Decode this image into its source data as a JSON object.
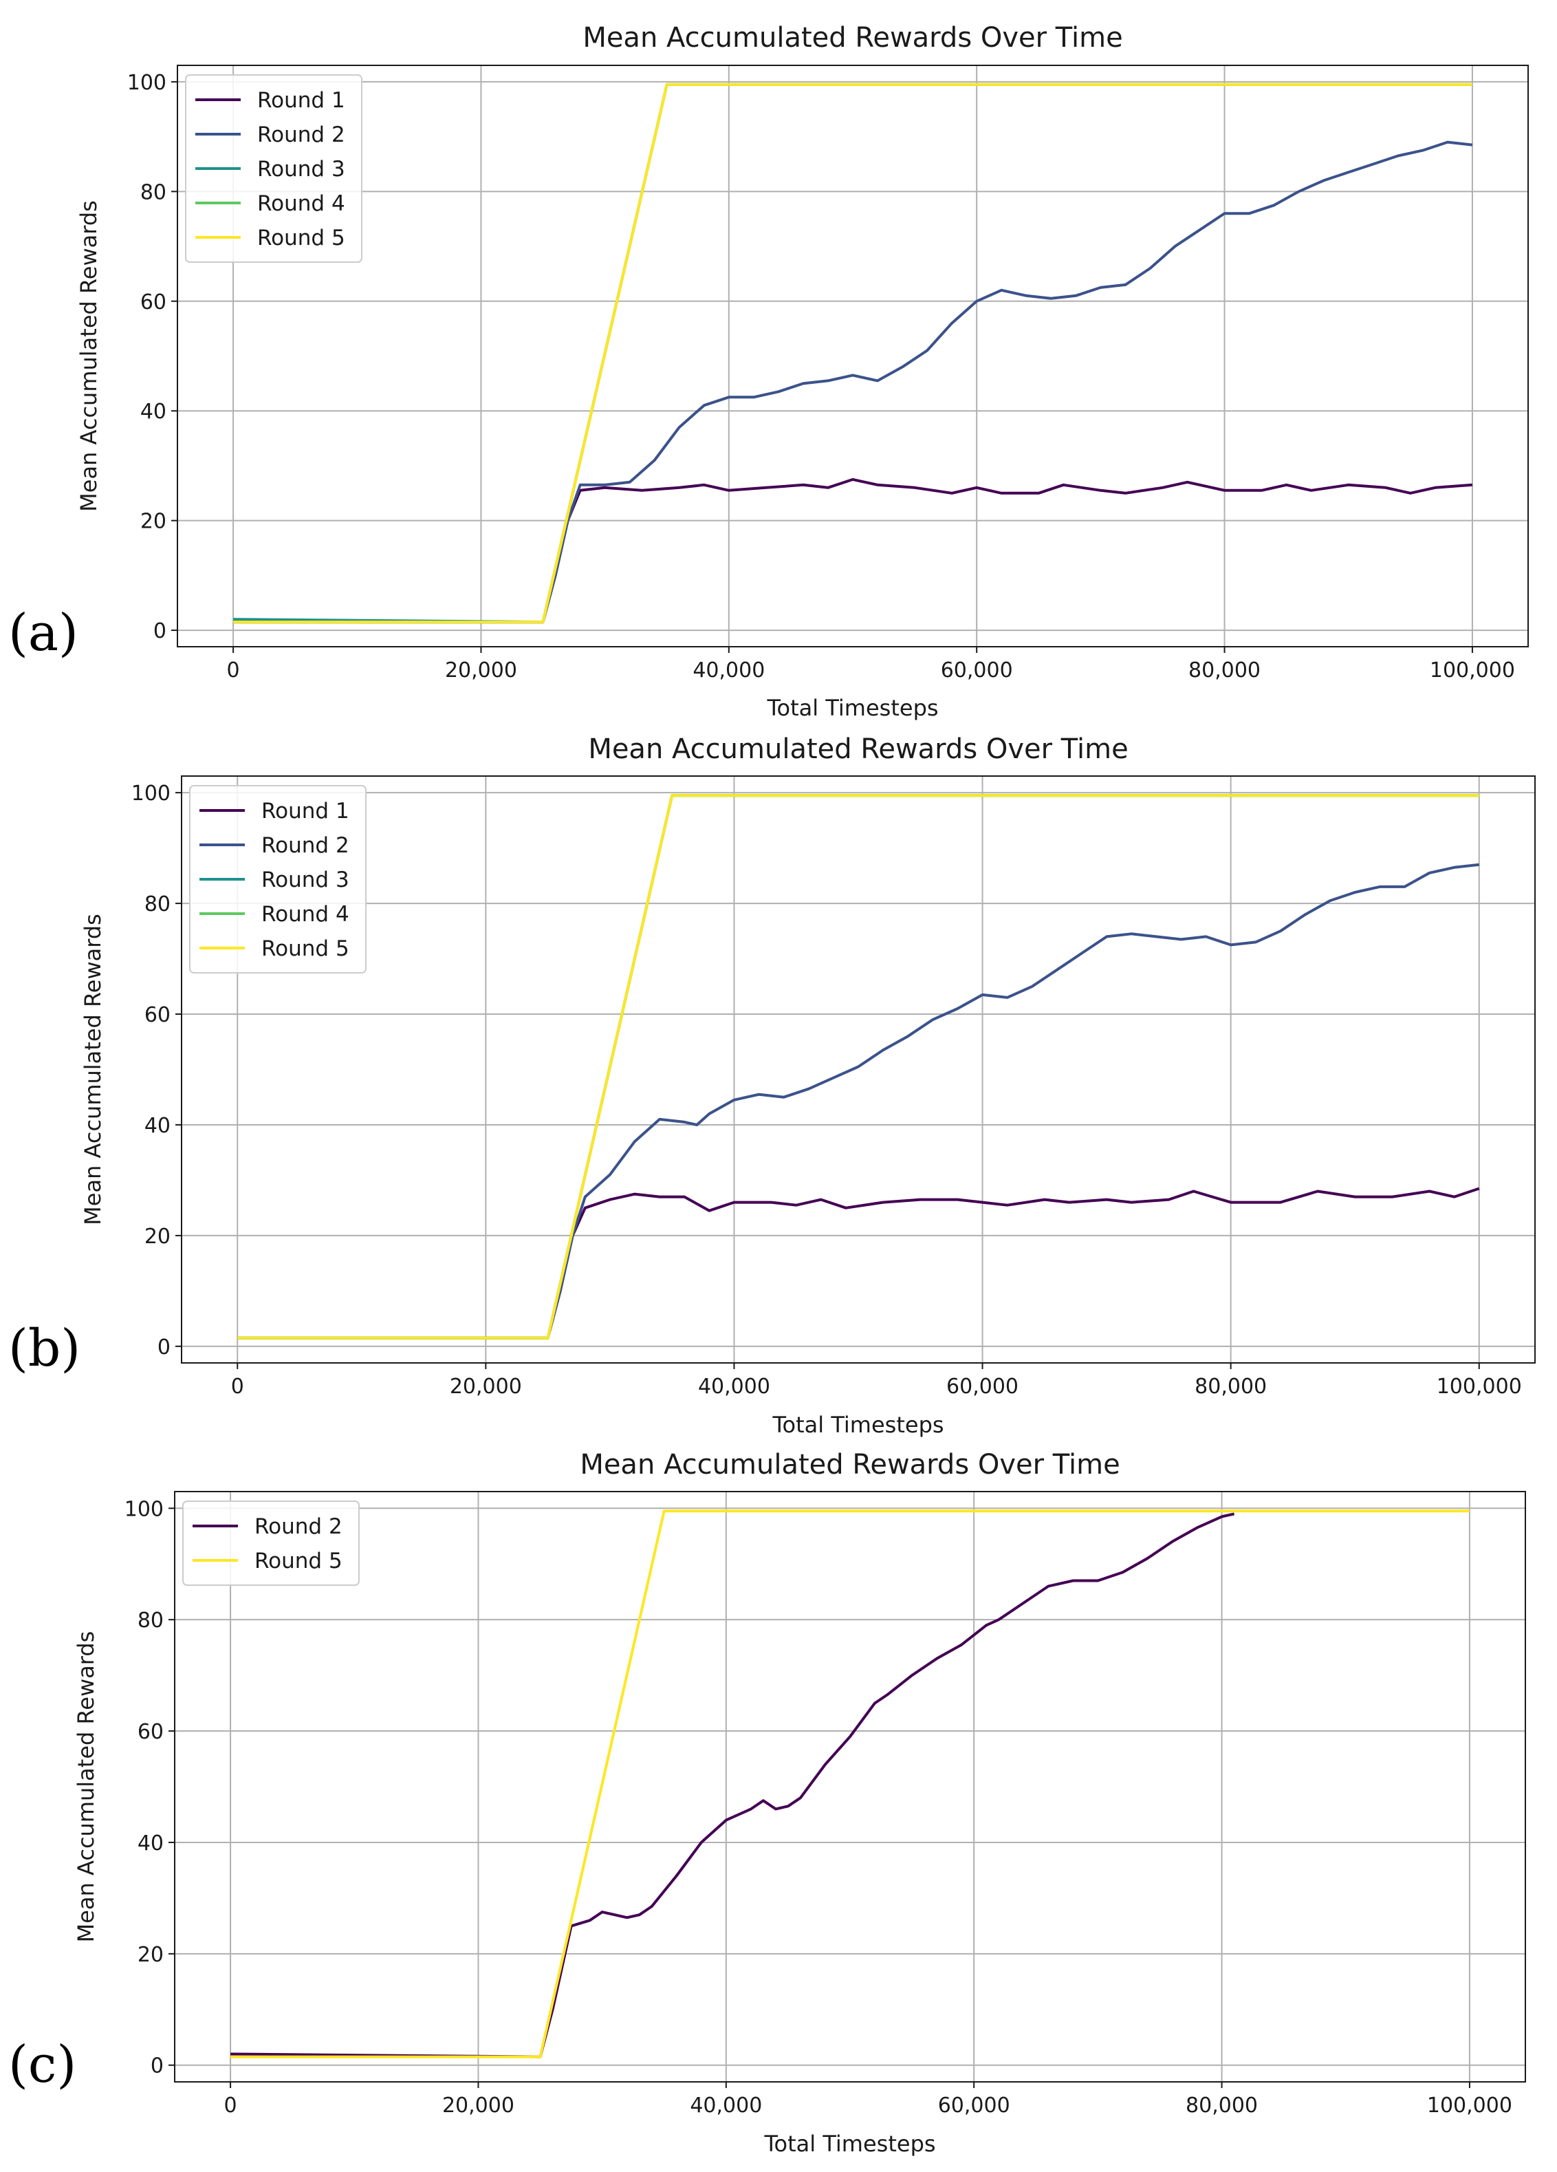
{
  "chart_data": [
    {
      "type": "line",
      "panel_label": "(a)",
      "title": "Mean Accumulated Rewards Over Time",
      "xlabel": "Total Timesteps",
      "ylabel": "Mean Accumulated Rewards",
      "xlim": [
        -4500,
        104500
      ],
      "ylim": [
        -3,
        103
      ],
      "xticks": [
        0,
        20000,
        40000,
        60000,
        80000,
        100000
      ],
      "xtick_labels": [
        "0",
        "20,000",
        "40,000",
        "60,000",
        "80,000",
        "100,000"
      ],
      "yticks": [
        0,
        20,
        40,
        60,
        80,
        100
      ],
      "ytick_labels": [
        "0",
        "20",
        "40",
        "60",
        "80",
        "100"
      ],
      "grid": true,
      "legend_position": "upper-left",
      "series": [
        {
          "name": "Round 1",
          "color": "#440154",
          "points": [
            [
              0,
              1.5
            ],
            [
              25000,
              1.5
            ],
            [
              26000,
              10
            ],
            [
              27000,
              20
            ],
            [
              28000,
              25.5
            ],
            [
              30000,
              26
            ],
            [
              33000,
              25.5
            ],
            [
              36000,
              26
            ],
            [
              38000,
              26.5
            ],
            [
              40000,
              25.5
            ],
            [
              43000,
              26
            ],
            [
              46000,
              26.5
            ],
            [
              48000,
              26
            ],
            [
              50000,
              27.5
            ],
            [
              52000,
              26.5
            ],
            [
              55000,
              26
            ],
            [
              58000,
              25
            ],
            [
              60000,
              26
            ],
            [
              62000,
              25
            ],
            [
              65000,
              25
            ],
            [
              67000,
              26.5
            ],
            [
              70000,
              25.5
            ],
            [
              72000,
              25
            ],
            [
              75000,
              26
            ],
            [
              77000,
              27
            ],
            [
              80000,
              25.5
            ],
            [
              83000,
              25.5
            ],
            [
              85000,
              26.5
            ],
            [
              87000,
              25.5
            ],
            [
              90000,
              26.5
            ],
            [
              93000,
              26
            ],
            [
              95000,
              25
            ],
            [
              97000,
              26
            ],
            [
              100000,
              26.5
            ]
          ]
        },
        {
          "name": "Round 2",
          "color": "#3b528b",
          "points": [
            [
              0,
              1.5
            ],
            [
              25000,
              1.5
            ],
            [
              26000,
              10
            ],
            [
              27000,
              20
            ],
            [
              28000,
              26.5
            ],
            [
              30000,
              26.5
            ],
            [
              32000,
              27
            ],
            [
              34000,
              31
            ],
            [
              36000,
              37
            ],
            [
              38000,
              41
            ],
            [
              40000,
              42.5
            ],
            [
              42000,
              42.5
            ],
            [
              44000,
              43.5
            ],
            [
              46000,
              45
            ],
            [
              48000,
              45.5
            ],
            [
              50000,
              46.5
            ],
            [
              52000,
              45.5
            ],
            [
              54000,
              48
            ],
            [
              56000,
              51
            ],
            [
              58000,
              56
            ],
            [
              60000,
              60
            ],
            [
              62000,
              62
            ],
            [
              64000,
              61
            ],
            [
              66000,
              60.5
            ],
            [
              68000,
              61
            ],
            [
              70000,
              62.5
            ],
            [
              72000,
              63
            ],
            [
              74000,
              66
            ],
            [
              76000,
              70
            ],
            [
              78000,
              73
            ],
            [
              80000,
              76
            ],
            [
              82000,
              76
            ],
            [
              84000,
              77.5
            ],
            [
              86000,
              80
            ],
            [
              88000,
              82
            ],
            [
              90000,
              83.5
            ],
            [
              92000,
              85
            ],
            [
              94000,
              86.5
            ],
            [
              96000,
              87.5
            ],
            [
              98000,
              89
            ],
            [
              100000,
              88.5
            ]
          ]
        },
        {
          "name": "Round 3",
          "color": "#21918c",
          "points": [
            [
              0,
              2
            ],
            [
              25000,
              1.5
            ],
            [
              35000,
              99.5
            ],
            [
              100000,
              99.5
            ]
          ]
        },
        {
          "name": "Round 4",
          "color": "#5ec962",
          "points": [
            [
              0,
              1.5
            ],
            [
              25000,
              1.5
            ],
            [
              35000,
              99.5
            ],
            [
              100000,
              99.5
            ]
          ]
        },
        {
          "name": "Round 5",
          "color": "#fde725",
          "points": [
            [
              0,
              1.5
            ],
            [
              25000,
              1.5
            ],
            [
              35000,
              99.5
            ],
            [
              100000,
              99.5
            ]
          ]
        }
      ]
    },
    {
      "type": "line",
      "panel_label": "(b)",
      "title": "Mean Accumulated Rewards Over Time",
      "xlabel": "Total Timesteps",
      "ylabel": "Mean Accumulated Rewards",
      "xlim": [
        -4500,
        104500
      ],
      "ylim": [
        -3,
        103
      ],
      "xticks": [
        0,
        20000,
        40000,
        60000,
        80000,
        100000
      ],
      "xtick_labels": [
        "0",
        "20,000",
        "40,000",
        "60,000",
        "80,000",
        "100,000"
      ],
      "yticks": [
        0,
        20,
        40,
        60,
        80,
        100
      ],
      "ytick_labels": [
        "0",
        "20",
        "40",
        "60",
        "80",
        "100"
      ],
      "grid": true,
      "legend_position": "upper-left",
      "series": [
        {
          "name": "Round 1",
          "color": "#440154",
          "points": [
            [
              0,
              1.5
            ],
            [
              25000,
              1.5
            ],
            [
              26000,
              10
            ],
            [
              27000,
              20
            ],
            [
              28000,
              25
            ],
            [
              30000,
              26.5
            ],
            [
              32000,
              27.5
            ],
            [
              34000,
              27
            ],
            [
              36000,
              27
            ],
            [
              38000,
              24.5
            ],
            [
              40000,
              26
            ],
            [
              43000,
              26
            ],
            [
              45000,
              25.5
            ],
            [
              47000,
              26.5
            ],
            [
              49000,
              25
            ],
            [
              52000,
              26
            ],
            [
              55000,
              26.5
            ],
            [
              58000,
              26.5
            ],
            [
              60000,
              26
            ],
            [
              62000,
              25.5
            ],
            [
              65000,
              26.5
            ],
            [
              67000,
              26
            ],
            [
              70000,
              26.5
            ],
            [
              72000,
              26
            ],
            [
              75000,
              26.5
            ],
            [
              77000,
              28
            ],
            [
              80000,
              26
            ],
            [
              82000,
              26
            ],
            [
              84000,
              26
            ],
            [
              87000,
              28
            ],
            [
              90000,
              27
            ],
            [
              93000,
              27
            ],
            [
              96000,
              28
            ],
            [
              98000,
              27
            ],
            [
              100000,
              28.5
            ]
          ]
        },
        {
          "name": "Round 2",
          "color": "#3b528b",
          "points": [
            [
              0,
              1.5
            ],
            [
              25000,
              1.5
            ],
            [
              26000,
              10
            ],
            [
              27000,
              20
            ],
            [
              28000,
              27
            ],
            [
              30000,
              31
            ],
            [
              32000,
              37
            ],
            [
              34000,
              41
            ],
            [
              36000,
              40.5
            ],
            [
              37000,
              40
            ],
            [
              38000,
              42
            ],
            [
              40000,
              44.5
            ],
            [
              42000,
              45.5
            ],
            [
              44000,
              45
            ],
            [
              46000,
              46.5
            ],
            [
              48000,
              48.5
            ],
            [
              50000,
              50.5
            ],
            [
              52000,
              53.5
            ],
            [
              54000,
              56
            ],
            [
              56000,
              59
            ],
            [
              58000,
              61
            ],
            [
              60000,
              63.5
            ],
            [
              62000,
              63
            ],
            [
              64000,
              65
            ],
            [
              66000,
              68
            ],
            [
              68000,
              71
            ],
            [
              70000,
              74
            ],
            [
              72000,
              74.5
            ],
            [
              74000,
              74
            ],
            [
              76000,
              73.5
            ],
            [
              78000,
              74
            ],
            [
              80000,
              72.5
            ],
            [
              82000,
              73
            ],
            [
              84000,
              75
            ],
            [
              86000,
              78
            ],
            [
              88000,
              80.5
            ],
            [
              90000,
              82
            ],
            [
              92000,
              83
            ],
            [
              94000,
              83
            ],
            [
              96000,
              85.5
            ],
            [
              98000,
              86.5
            ],
            [
              100000,
              87
            ]
          ]
        },
        {
          "name": "Round 3",
          "color": "#21918c",
          "points": [
            [
              0,
              1.5
            ],
            [
              25000,
              1.5
            ],
            [
              35000,
              99.5
            ],
            [
              100000,
              99.5
            ]
          ]
        },
        {
          "name": "Round 4",
          "color": "#5ec962",
          "points": [
            [
              0,
              1.5
            ],
            [
              25000,
              1.5
            ],
            [
              35000,
              99.5
            ],
            [
              100000,
              99.5
            ]
          ]
        },
        {
          "name": "Round 5",
          "color": "#fde725",
          "points": [
            [
              0,
              1.5
            ],
            [
              25000,
              1.5
            ],
            [
              35000,
              99.5
            ],
            [
              100000,
              99.5
            ]
          ]
        }
      ]
    },
    {
      "type": "line",
      "panel_label": "(c)",
      "title": "Mean Accumulated Rewards Over Time",
      "xlabel": "Total Timesteps",
      "ylabel": "Mean Accumulated Rewards",
      "xlim": [
        -4500,
        104500
      ],
      "ylim": [
        -3,
        103
      ],
      "xticks": [
        0,
        20000,
        40000,
        60000,
        80000,
        100000
      ],
      "xtick_labels": [
        "0",
        "20,000",
        "40,000",
        "60,000",
        "80,000",
        "100,000"
      ],
      "yticks": [
        0,
        20,
        40,
        60,
        80,
        100
      ],
      "ytick_labels": [
        "0",
        "20",
        "40",
        "60",
        "80",
        "100"
      ],
      "grid": true,
      "legend_position": "upper-left",
      "series": [
        {
          "name": "Round 2",
          "color": "#440154",
          "points": [
            [
              0,
              2
            ],
            [
              25000,
              1.5
            ],
            [
              26000,
              10
            ],
            [
              27000,
              20
            ],
            [
              27500,
              25
            ],
            [
              29000,
              26
            ],
            [
              30000,
              27.5
            ],
            [
              32000,
              26.5
            ],
            [
              33000,
              27
            ],
            [
              34000,
              28.5
            ],
            [
              36000,
              34
            ],
            [
              38000,
              40
            ],
            [
              40000,
              44
            ],
            [
              42000,
              46
            ],
            [
              43000,
              47.5
            ],
            [
              44000,
              46
            ],
            [
              45000,
              46.5
            ],
            [
              46000,
              48
            ],
            [
              48000,
              54
            ],
            [
              50000,
              59
            ],
            [
              52000,
              65
            ],
            [
              53000,
              66.5
            ],
            [
              55000,
              70
            ],
            [
              57000,
              73
            ],
            [
              59000,
              75.5
            ],
            [
              61000,
              79
            ],
            [
              62000,
              80
            ],
            [
              64000,
              83
            ],
            [
              66000,
              86
            ],
            [
              68000,
              87
            ],
            [
              70000,
              87
            ],
            [
              72000,
              88.5
            ],
            [
              74000,
              91
            ],
            [
              76000,
              94
            ],
            [
              78000,
              96.5
            ],
            [
              80000,
              98.5
            ],
            [
              81000,
              99
            ]
          ]
        },
        {
          "name": "Round 5",
          "color": "#fde725",
          "points": [
            [
              0,
              1.5
            ],
            [
              25000,
              1.5
            ],
            [
              35000,
              99.5
            ],
            [
              100000,
              99.5
            ]
          ]
        }
      ]
    }
  ]
}
